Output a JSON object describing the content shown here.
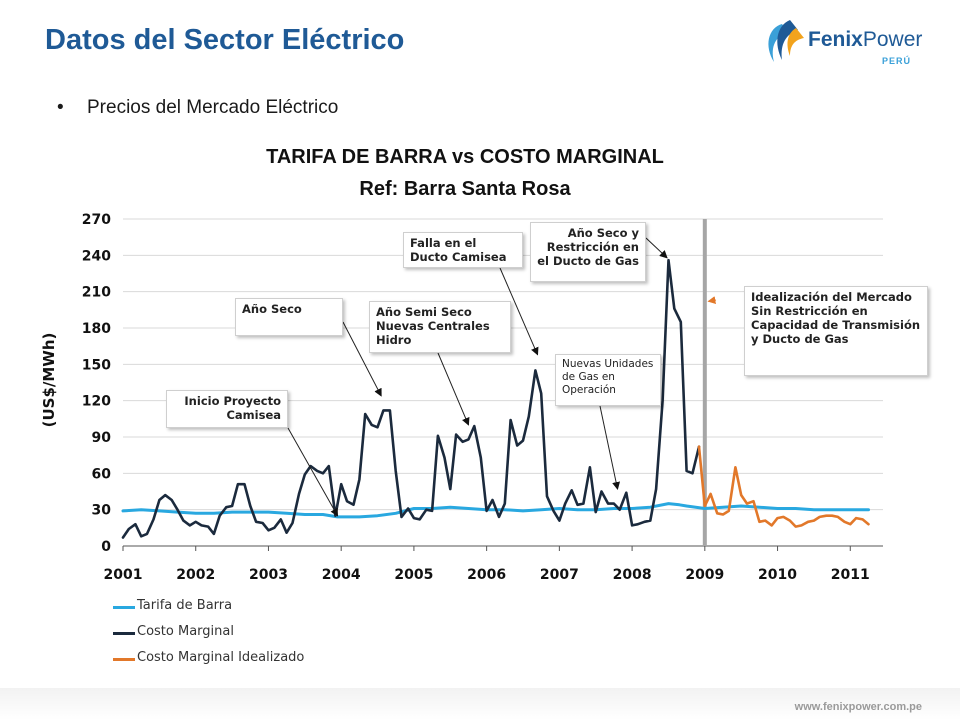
{
  "header": {
    "title": "Datos del Sector Eléctrico"
  },
  "logo": {
    "name": "Fenix",
    "name_light": "Power",
    "country": "PERÚ"
  },
  "bullet": {
    "text": "Precios del Mercado Eléctrico"
  },
  "footer": {
    "url": "www.fenixpower.com.pe"
  },
  "colors": {
    "title": "#1f5a96",
    "tarifa": "#29a8e0",
    "costo": "#1b2a3d",
    "idealizado": "#e2782a",
    "divider": "#a6a6a6"
  },
  "chart_data": {
    "type": "line",
    "title": "TARIFA DE BARRA vs COSTO MARGINAL",
    "subtitle": "Ref:  Barra Santa Rosa",
    "ylabel": "(US$/MWh)",
    "xlabel": "",
    "ylim": [
      0,
      270
    ],
    "yticks": [
      0,
      30,
      60,
      90,
      120,
      150,
      180,
      210,
      240,
      270
    ],
    "xlim": [
      2001,
      2011.45
    ],
    "xticks": [
      "2001",
      "2002",
      "2003",
      "2004",
      "2005",
      "2006",
      "2007",
      "2008",
      "2009",
      "2010",
      "2011"
    ],
    "grid": "horizontal",
    "divider_x": 2009.0,
    "legend_position": "bottom-left",
    "series": [
      {
        "name": "Tarifa de Barra",
        "x": [
          2001,
          2001.25,
          2001.5,
          2001.75,
          2002,
          2002.25,
          2002.5,
          2002.75,
          2003,
          2003.25,
          2003.5,
          2003.75,
          2003.95,
          2004,
          2004.25,
          2004.5,
          2004.75,
          2005,
          2005.25,
          2005.5,
          2005.75,
          2006,
          2006.25,
          2006.5,
          2006.75,
          2007,
          2007.25,
          2007.5,
          2007.75,
          2008,
          2008.25,
          2008.5,
          2008.65,
          2008.75,
          2009,
          2009.25,
          2009.5,
          2009.75,
          2010,
          2010.25,
          2010.5,
          2010.75,
          2011,
          2011.25
        ],
        "values": [
          29,
          30,
          29,
          28,
          27,
          27,
          28,
          28,
          28,
          27,
          26,
          26,
          24,
          24,
          24,
          25,
          27,
          31,
          31,
          32,
          31,
          30,
          30,
          29,
          30,
          31,
          30,
          30,
          31,
          31,
          32,
          35,
          34,
          33,
          31,
          32,
          33,
          32,
          31,
          31,
          30,
          30,
          30,
          30
        ]
      },
      {
        "name": "Costo Marginal",
        "x": [
          2001,
          2001.08,
          2001.17,
          2001.25,
          2001.33,
          2001.42,
          2001.5,
          2001.58,
          2001.67,
          2001.75,
          2001.83,
          2001.92,
          2002,
          2002.08,
          2002.17,
          2002.25,
          2002.33,
          2002.42,
          2002.5,
          2002.58,
          2002.67,
          2002.75,
          2002.83,
          2002.92,
          2003,
          2003.08,
          2003.17,
          2003.25,
          2003.33,
          2003.42,
          2003.5,
          2003.58,
          2003.67,
          2003.75,
          2003.83,
          2003.92,
          2004,
          2004.08,
          2004.17,
          2004.25,
          2004.33,
          2004.42,
          2004.5,
          2004.58,
          2004.67,
          2004.75,
          2004.83,
          2004.92,
          2005,
          2005.08,
          2005.17,
          2005.25,
          2005.33,
          2005.42,
          2005.5,
          2005.58,
          2005.67,
          2005.75,
          2005.83,
          2005.92,
          2006,
          2006.08,
          2006.17,
          2006.25,
          2006.33,
          2006.42,
          2006.5,
          2006.58,
          2006.67,
          2006.75,
          2006.83,
          2006.92,
          2007,
          2007.08,
          2007.17,
          2007.25,
          2007.33,
          2007.42,
          2007.5,
          2007.58,
          2007.67,
          2007.75,
          2007.83,
          2007.92,
          2008,
          2008.08,
          2008.17,
          2008.25,
          2008.33,
          2008.42,
          2008.5,
          2008.58,
          2008.67,
          2008.75,
          2008.83,
          2008.92
        ],
        "values": [
          7,
          14,
          18,
          8,
          10,
          22,
          38,
          42,
          38,
          30,
          21,
          17,
          20,
          17,
          16,
          10,
          25,
          32,
          33,
          51,
          51,
          33,
          20,
          19,
          13,
          15,
          22,
          11,
          19,
          43,
          59,
          66,
          62,
          60,
          66,
          25,
          51,
          37,
          34,
          55,
          109,
          100,
          98,
          112,
          112,
          62,
          24,
          31,
          23,
          22,
          30,
          29,
          91,
          73,
          47,
          92,
          86,
          88,
          99,
          73,
          29,
          38,
          24,
          35,
          104,
          83,
          87,
          107,
          145,
          126,
          41,
          29,
          21,
          35,
          46,
          34,
          35,
          65,
          28,
          45,
          35,
          35,
          30,
          44,
          17,
          18,
          20,
          21,
          47,
          120,
          236,
          196,
          185,
          62,
          60,
          82
        ]
      },
      {
        "name": "Costo Marginal Idealizado",
        "x": [
          2008.92,
          2009,
          2009.08,
          2009.17,
          2009.25,
          2009.33,
          2009.42,
          2009.5,
          2009.58,
          2009.67,
          2009.75,
          2009.83,
          2009.92,
          2010,
          2010.08,
          2010.17,
          2010.25,
          2010.33,
          2010.42,
          2010.5,
          2010.58,
          2010.67,
          2010.75,
          2010.83,
          2010.92,
          2011,
          2011.08,
          2011.17,
          2011.25
        ],
        "values": [
          82,
          33,
          43,
          27,
          26,
          29,
          65,
          42,
          35,
          37,
          20,
          21,
          17,
          23,
          24,
          21,
          16,
          17,
          20,
          21,
          24,
          25,
          25,
          24,
          20,
          18,
          23,
          22,
          18
        ]
      }
    ],
    "annotations": [
      {
        "text": "Inicio Proyecto Camisea",
        "target_x": 2003.95,
        "target_y": 25
      },
      {
        "text": "Año Seco",
        "target_x": 2004.55,
        "target_y": 124
      },
      {
        "text": "Año Semi Seco Nuevas Centrales Hidro",
        "target_x": 2005.75,
        "target_y": 100
      },
      {
        "text": "Falla en el Ducto Camisea",
        "target_x": 2006.7,
        "target_y": 158
      },
      {
        "text": "Nuevas Unidades de Gas en Operación",
        "target_x": 2007.8,
        "target_y": 47
      },
      {
        "text": "Año Seco y Restricción en el Ducto de Gas",
        "target_x": 2008.48,
        "target_y": 238
      },
      {
        "text": "Idealización del Mercado Sin Restricción en Capacidad de Transmisión y Ducto de Gas",
        "target_x": 2009.05,
        "target_y": 202
      }
    ]
  }
}
